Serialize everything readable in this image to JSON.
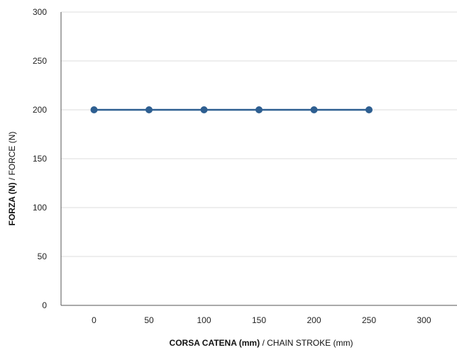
{
  "chart_data": {
    "type": "line",
    "xlabel_bold": "CORSA CATENA (mm)",
    "xlabel_rest": " / CHAIN STROKE (mm)",
    "ylabel_bold": "FORZA (N)",
    "ylabel_rest": " / FORCE (N)",
    "xlim": [
      -30,
      330
    ],
    "ylim": [
      0,
      300
    ],
    "x_ticks": [
      0,
      50,
      100,
      150,
      200,
      250,
      300
    ],
    "y_ticks": [
      0,
      50,
      100,
      150,
      200,
      250,
      300
    ],
    "grid": true,
    "series": [
      {
        "color": "#2e5f91",
        "points": [
          [
            0,
            200
          ],
          [
            50,
            200
          ],
          [
            100,
            200
          ],
          [
            150,
            200
          ],
          [
            200,
            200
          ],
          [
            250,
            200
          ]
        ]
      }
    ]
  }
}
